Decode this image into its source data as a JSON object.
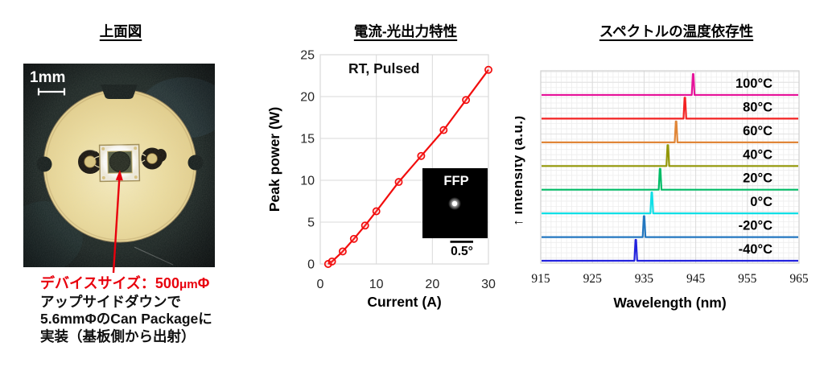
{
  "figure": {
    "background": "#ffffff"
  },
  "panels": {
    "top_view": {
      "title": "上面図",
      "scale_label": "1mm",
      "accent_color": "#e8000d",
      "caption_red_parts": [
        "デバイスサイズ：500",
        "μm",
        "Φ"
      ],
      "caption_lines": [
        "アップサイドダウンで",
        "5.6mmΦのCan Packageに",
        "実装（基板側から出射）"
      ]
    },
    "li_curve": {
      "title": "電流-光出力特性"
    },
    "spectra": {
      "title": "スペクトルの温度依存性"
    }
  },
  "chart_data": [
    {
      "type": "scatter",
      "title": "電流-光出力特性",
      "xlabel": "Current (A)",
      "ylabel": "Peak power (W)",
      "annotation": "RT, Pulsed",
      "xlim": [
        0,
        30
      ],
      "ylim": [
        0,
        25
      ],
      "xticks": [
        0,
        10,
        20,
        30
      ],
      "yticks": [
        0,
        5,
        10,
        15,
        20,
        25
      ],
      "grid": true,
      "line_color": "#f20d0d",
      "points": [
        [
          1.4,
          0.0
        ],
        [
          2.1,
          0.3
        ],
        [
          4,
          1.5
        ],
        [
          6,
          3.0
        ],
        [
          8,
          4.6
        ],
        [
          10,
          6.3
        ],
        [
          14,
          9.8
        ],
        [
          18,
          12.9
        ],
        [
          22,
          16.0
        ],
        [
          26,
          19.6
        ],
        [
          30,
          23.2
        ]
      ],
      "inset": {
        "label": "FFP",
        "scale_bar_label": "0.5°"
      }
    },
    {
      "type": "line",
      "title": "スペクトルの温度依存性",
      "xlabel": "Wavelength (nm)",
      "ylabel": "Intensity (a.u.)",
      "axis_arrow": "↑",
      "xlim": [
        915,
        965
      ],
      "xticks": [
        915,
        925,
        935,
        945,
        955,
        965
      ],
      "grid": true,
      "legend_position": "right-inside",
      "series": [
        {
          "name": "100°C",
          "color": "#e6149a",
          "peak_nm": 944.5
        },
        {
          "name": "80°C",
          "color": "#f32222",
          "peak_nm": 942.9
        },
        {
          "name": "60°C",
          "color": "#e08638",
          "peak_nm": 941.2
        },
        {
          "name": "40°C",
          "color": "#939707",
          "peak_nm": 939.6
        },
        {
          "name": "20°C",
          "color": "#00bb66",
          "peak_nm": 938.1
        },
        {
          "name": "0°C",
          "color": "#10dfe6",
          "peak_nm": 936.5
        },
        {
          "name": "-20°C",
          "color": "#2377c0",
          "peak_nm": 935.0
        },
        {
          "name": "-40°C",
          "color": "#2222dd",
          "peak_nm": 933.4
        }
      ]
    }
  ]
}
